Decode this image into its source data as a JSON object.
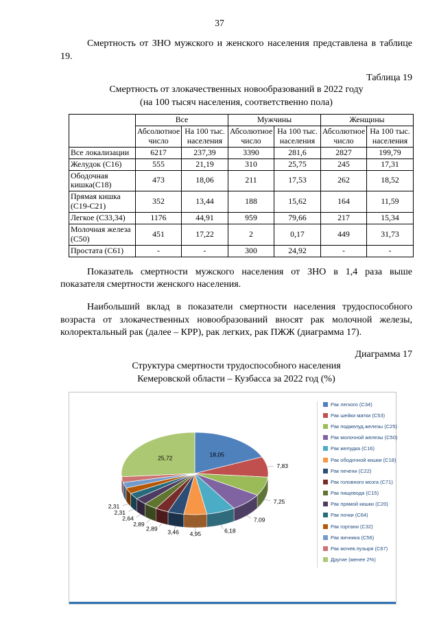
{
  "page": {
    "number": "37",
    "para1": "Смертность от ЗНО мужского и женского населения представлена в таблице 19.",
    "table_label": "Таблица 19",
    "table_title1": "Смертность от злокачественных новообразований в 2022 году",
    "table_title2": "(на 100 тысяч населения, соответственно пола)",
    "para2": "Показатель смертности мужского населения от ЗНО в 1,4 раза выше показателя смертности женского населения.",
    "para3": "Наибольший вклад в показатели смертности населения трудоспособного возраста от злокачественных новообразований вносят рак молочной железы, колоректальный рак (далее – КРР), рак легких, рак ПЖЖ (диаграмма 17).",
    "diagram_label": "Диаграмма 17",
    "chart_title1": "Структура смертности трудоспособного населения",
    "chart_title2": "Кемеровской области – Кузбасса за 2022 год (%)"
  },
  "table": {
    "group_headers": [
      "Все",
      "Мужчины",
      "Женщины"
    ],
    "sub_headers": [
      "Абсолютное число",
      "На 100 тыс. населения"
    ],
    "rows": [
      {
        "name": "Все локализации",
        "values": [
          "6217",
          "237,39",
          "3390",
          "281,6",
          "2827",
          "199,79"
        ]
      },
      {
        "name": "Желудок (С16)",
        "values": [
          "555",
          "21,19",
          "310",
          "25,75",
          "245",
          "17,31"
        ]
      },
      {
        "name": "Ободочная кишка(С18)",
        "values": [
          "473",
          "18,06",
          "211",
          "17,53",
          "262",
          "18,52"
        ]
      },
      {
        "name": "Прямая кишка (С19-С21)",
        "values": [
          "352",
          "13,44",
          "188",
          "15,62",
          "164",
          "11,59"
        ]
      },
      {
        "name": "Легкое (С33,34)",
        "values": [
          "1176",
          "44,91",
          "959",
          "79,66",
          "217",
          "15,34"
        ]
      },
      {
        "name": "Молочная железа (С50)",
        "values": [
          "451",
          "17,22",
          "2",
          "0,17",
          "449",
          "31,73"
        ]
      },
      {
        "name": "Простата (С61)",
        "values": [
          "-",
          "-",
          "300",
          "24,92",
          "-",
          "-"
        ]
      }
    ]
  },
  "chart_data": {
    "type": "pie",
    "title": "Структура смертности трудоспособного населения Кемеровской области – Кузбасса за 2022 год (%)",
    "legend_position": "right",
    "slices": [
      {
        "label": "Рак легкого (С34)",
        "value": 18.05,
        "display": "18,05",
        "color": "#4F81BD"
      },
      {
        "label": "Рак шейки матки (С53)",
        "value": 7.83,
        "display": "7,83",
        "color": "#C0504D"
      },
      {
        "label": "Рак поджелуд.железы (С25)",
        "value": 7.25,
        "display": "7,25",
        "color": "#9BBB59"
      },
      {
        "label": "Рак молочной железы (С50)",
        "value": 7.09,
        "display": "7,09",
        "color": "#8064A2"
      },
      {
        "label": "Рак желудка (С16)",
        "value": 6.18,
        "display": "6,18",
        "color": "#4BACC6"
      },
      {
        "label": "Рак ободочной кишки (С18)",
        "value": 4.95,
        "display": "4,95",
        "color": "#F79646"
      },
      {
        "label": "Рак печени (С22)",
        "value": 3.46,
        "display": "3,46",
        "color": "#2C4D75"
      },
      {
        "label": "Рак головного мозга (С71)",
        "value": 2.89,
        "display": "2,89",
        "color": "#772C2A"
      },
      {
        "label": "Рак пищевода (С15)",
        "value": 2.89,
        "display": "2,89",
        "color": "#5F7530"
      },
      {
        "label": "Рак прямой кишки (С20)",
        "value": 2.64,
        "display": "2,64",
        "color": "#4D3B62"
      },
      {
        "label": "Рак почки (С64)",
        "value": 2.31,
        "display": "2,31",
        "color": "#276A7C"
      },
      {
        "label": "Рак гортани (С32)",
        "value": 2.31,
        "display": "2,31",
        "color": "#B65708"
      },
      {
        "label": "Рак яичника (С56)",
        "value": 2.2,
        "display": "",
        "color": "#729ACA"
      },
      {
        "label": "Рак мочев.пузыря (С67)",
        "value": 2.2,
        "display": "",
        "color": "#CD7371"
      },
      {
        "label": "Другие (менее 2%)",
        "value": 25.72,
        "display": "25,72",
        "color": "#ADC873"
      }
    ]
  }
}
